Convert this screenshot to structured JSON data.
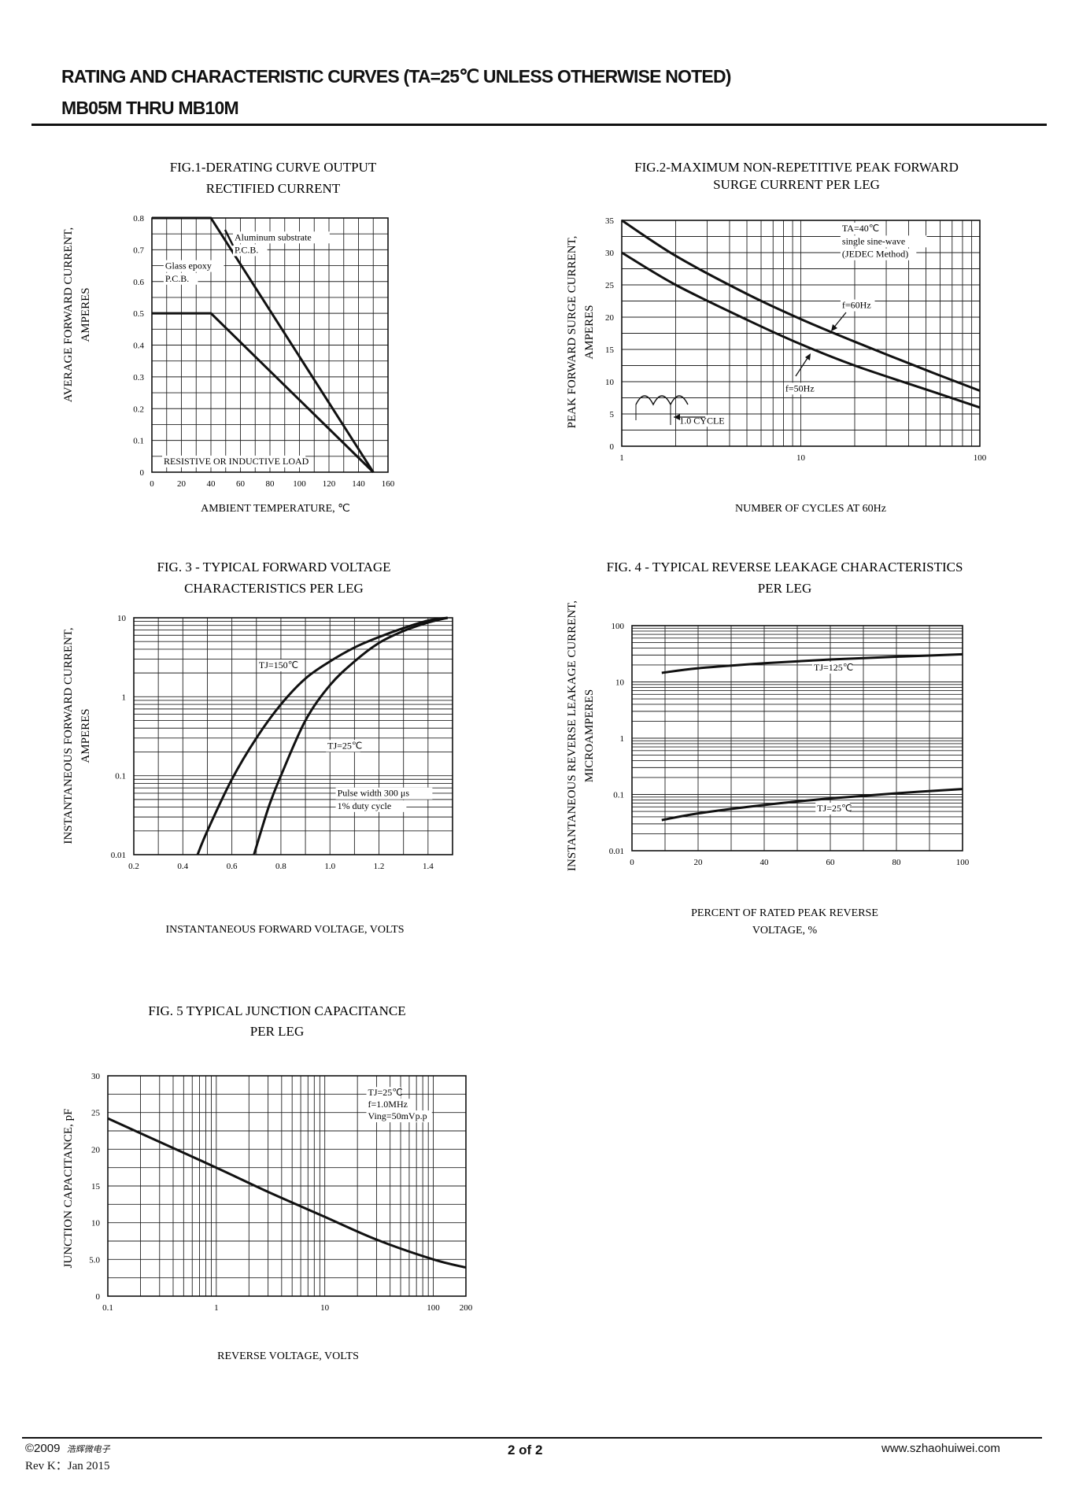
{
  "header": {
    "title": "RATING AND CHARACTERISTIC CURVES (TA=25℃ UNLESS OTHERWISE NOTED)",
    "subtitle": "MB05M THRU MB10M"
  },
  "footer": {
    "copyright": "©2009",
    "company": "浩辉微电子",
    "revision": "Rev K：Jan 2015",
    "page": "2 of  2",
    "website": "www.szhaohuiwei.com"
  },
  "chart_data": [
    {
      "id": "fig1",
      "type": "line",
      "title": [
        "FIG.1-DERATING CURVE OUTPUT",
        "RECTIFIED  CURRENT"
      ],
      "xlabel": "AMBIENT TEMPERATURE, ℃",
      "ylabel": [
        "AVERAGE FORWARD CURRENT,",
        "AMPERES"
      ],
      "xscale": "linear",
      "yscale": "linear",
      "xlim": [
        0,
        160
      ],
      "ylim": [
        0,
        0.8
      ],
      "xticks": [
        0,
        20,
        40,
        60,
        80,
        100,
        120,
        140,
        160
      ],
      "xticklabels": [
        "0",
        "20",
        "40",
        "60",
        "80",
        "100",
        "120",
        "140",
        "160"
      ],
      "yticks": [
        0,
        0.1,
        0.2,
        0.3,
        0.4,
        0.5,
        0.6,
        0.7,
        0.8
      ],
      "yticklabels": [
        "0",
        "0.1",
        "0.2",
        "0.3",
        "0.4",
        "0.5",
        "0.6",
        "0.7",
        "0.8"
      ],
      "series": [
        {
          "name": "Aluminum substrate P.C.B.",
          "points": [
            [
              0,
              0.8
            ],
            [
              40,
              0.8
            ],
            [
              150,
              0
            ]
          ]
        },
        {
          "name": "Glass epoxy P.C.B.",
          "points": [
            [
              0,
              0.5
            ],
            [
              40,
              0.5
            ],
            [
              150,
              0
            ]
          ]
        }
      ],
      "annotations": [
        {
          "text": "Aluminum substrate",
          "x": 56,
          "y": 0.73
        },
        {
          "text": "P.C.B.",
          "x": 56,
          "y": 0.69
        },
        {
          "text": "Glass epoxy",
          "x": 9,
          "y": 0.64
        },
        {
          "text": "P.C.B.",
          "x": 9,
          "y": 0.6
        },
        {
          "text": "RESISTIVE OR INDUCTIVE LOAD",
          "x": 8,
          "y": 0.025
        }
      ]
    },
    {
      "id": "fig2",
      "type": "line",
      "title": [
        "FIG.2-MAXIMUM NON-REPETITIVE PEAK FORWARD",
        "SURGE CURRENT PER LEG"
      ],
      "xlabel": "NUMBER OF CYCLES AT 60Hz",
      "ylabel": [
        "PEAK FORWARD SURGE CURRENT,",
        "AMPERES"
      ],
      "xscale": "log",
      "yscale": "linear",
      "xlim": [
        1,
        100
      ],
      "ylim": [
        0,
        35
      ],
      "xticks": [
        1,
        10,
        100
      ],
      "xticklabels": [
        "1",
        "10",
        "100"
      ],
      "yticks": [
        0,
        5,
        10,
        15,
        20,
        25,
        30,
        35
      ],
      "yticklabels": [
        "0",
        "5",
        "10",
        "15",
        "20",
        "25",
        "30",
        "35"
      ],
      "series": [
        {
          "name": "f=60Hz",
          "points": [
            [
              1,
              35
            ],
            [
              2,
              29.5
            ],
            [
              5,
              23.6
            ],
            [
              10,
              19.7
            ],
            [
              20,
              16.2
            ],
            [
              50,
              11.8
            ],
            [
              100,
              8.6
            ]
          ]
        },
        {
          "name": "f=50Hz",
          "points": [
            [
              1,
              30
            ],
            [
              2,
              25
            ],
            [
              5,
              19.6
            ],
            [
              10,
              15.8
            ],
            [
              20,
              12.5
            ],
            [
              50,
              8.8
            ],
            [
              100,
              6
            ]
          ]
        }
      ],
      "annotations": [
        {
          "text": "TA=40℃",
          "x": 17,
          "y": 33.3
        },
        {
          "text": "single sine-wave",
          "x": 17,
          "y": 31.3
        },
        {
          "text": "(JEDEC Method)",
          "x": 17,
          "y": 29.3
        },
        {
          "text": "f=60Hz",
          "x": 17,
          "y": 21.4
        },
        {
          "text": "f=50Hz",
          "x": 8.2,
          "y": 8.5
        },
        {
          "text": "1.0 CYCLE",
          "x": 2.1,
          "y": 3.5
        }
      ]
    },
    {
      "id": "fig3",
      "type": "line",
      "title": [
        "FIG. 3 - TYPICAL  FORWARD VOLTAGE",
        "CHARACTERISTICS PER LEG"
      ],
      "xlabel": "INSTANTANEOUS FORWARD VOLTAGE, VOLTS",
      "ylabel": [
        "INSTANTANEOUS FORWARD CURRENT,",
        "AMPERES"
      ],
      "xscale": "linear",
      "yscale": "log",
      "xlim": [
        0.2,
        1.5
      ],
      "ylim": [
        0.01,
        10
      ],
      "xticks": [
        0.2,
        0.4,
        0.6,
        0.8,
        1.0,
        1.2,
        1.4
      ],
      "xticklabels": [
        "0.2",
        "0.4",
        "0.6",
        "0.8",
        "1.0",
        "1.2",
        "1.4"
      ],
      "yticks": [
        0.01,
        0.1,
        1,
        10
      ],
      "yticklabels": [
        "0.01",
        "0.1",
        "1",
        "10"
      ],
      "series": [
        {
          "name": "TJ=150℃",
          "points": [
            [
              0.46,
              0.01
            ],
            [
              0.5,
              0.02
            ],
            [
              0.6,
              0.09
            ],
            [
              0.7,
              0.3
            ],
            [
              0.8,
              0.8
            ],
            [
              0.9,
              1.7
            ],
            [
              1.0,
              2.8
            ],
            [
              1.1,
              4.2
            ],
            [
              1.2,
              5.7
            ],
            [
              1.3,
              7.4
            ],
            [
              1.4,
              9.2
            ],
            [
              1.48,
              10
            ]
          ]
        },
        {
          "name": "TJ=25℃",
          "points": [
            [
              0.69,
              0.01
            ],
            [
              0.75,
              0.04
            ],
            [
              0.8,
              0.1
            ],
            [
              0.9,
              0.5
            ],
            [
              1.0,
              1.4
            ],
            [
              1.1,
              2.8
            ],
            [
              1.2,
              4.8
            ],
            [
              1.3,
              6.8
            ],
            [
              1.4,
              8.7
            ],
            [
              1.48,
              10
            ]
          ]
        }
      ],
      "annotations": [
        {
          "text": "TJ=150℃",
          "x": 0.71,
          "y": 2.3
        },
        {
          "text": "TJ=25℃",
          "x": 0.99,
          "y": 0.22
        },
        {
          "text": "Pulse width 300 μs",
          "x": 1.03,
          "y": 0.055
        },
        {
          "text": "1% duty cycle",
          "x": 1.03,
          "y": 0.038
        }
      ]
    },
    {
      "id": "fig4",
      "type": "line",
      "title": [
        "FIG. 4 - TYPICAL REVERSE LEAKAGE CHARACTERISTICS",
        "PER LEG"
      ],
      "xlabel": [
        "PERCENT OF RATED PEAK REVERSE",
        "VOLTAGE, %"
      ],
      "ylabel": [
        "INSTANTANEOUS REVERSE LEAKAGE CURRENT,",
        "MICROAMPERES"
      ],
      "xscale": "linear",
      "yscale": "log",
      "xlim": [
        0,
        100
      ],
      "ylim": [
        0.01,
        100
      ],
      "xticks": [
        0,
        20,
        40,
        60,
        80,
        100
      ],
      "xticklabels": [
        "0",
        "20",
        "40",
        "60",
        "80",
        "100"
      ],
      "yticks": [
        0.01,
        0.1,
        1,
        10,
        100
      ],
      "yticklabels": [
        "0.01",
        "0.1",
        "1",
        "10",
        "100"
      ],
      "series": [
        {
          "name": "TJ=125℃",
          "points": [
            [
              9,
              14.5
            ],
            [
              20,
              17.5
            ],
            [
              40,
              21.5
            ],
            [
              60,
              25
            ],
            [
              80,
              28
            ],
            [
              100,
              31
            ]
          ]
        },
        {
          "name": "TJ=25℃",
          "points": [
            [
              9,
              0.035
            ],
            [
              20,
              0.046
            ],
            [
              40,
              0.065
            ],
            [
              60,
              0.085
            ],
            [
              80,
              0.105
            ],
            [
              100,
              0.125
            ]
          ]
        }
      ],
      "annotations": [
        {
          "text": "TJ=125℃",
          "x": 55,
          "y": 16
        },
        {
          "text": "TJ=25℃",
          "x": 56,
          "y": 0.05
        }
      ]
    },
    {
      "id": "fig5",
      "type": "line",
      "title": [
        "FIG. 5  TYPICAL JUNCTION CAPACITANCE",
        "PER LEG"
      ],
      "xlabel": "REVERSE VOLTAGE, VOLTS",
      "ylabel": "JUNCTION CAPACITANCE, pF",
      "xscale": "log",
      "yscale": "linear",
      "xlim": [
        0.1,
        200
      ],
      "ylim": [
        0,
        30
      ],
      "xticks": [
        0.1,
        1,
        10,
        100,
        200
      ],
      "xticklabels": [
        "0.1",
        "1",
        "10",
        "100",
        "200"
      ],
      "yticks": [
        0,
        5,
        10,
        15,
        20,
        25,
        30
      ],
      "yticklabels": [
        "0",
        "5.0",
        "10",
        "15",
        "20",
        "25",
        "30"
      ],
      "series": [
        {
          "name": "TJ=25℃",
          "points": [
            [
              0.1,
              24.2
            ],
            [
              0.3,
              21
            ],
            [
              1,
              17.5
            ],
            [
              3,
              14.2
            ],
            [
              10,
              10.8
            ],
            [
              30,
              7.7
            ],
            [
              100,
              5
            ],
            [
              200,
              3.9
            ]
          ]
        }
      ],
      "annotations": [
        {
          "text": "TJ=25℃",
          "x": 25,
          "y": 27.3
        },
        {
          "text": "f=1.0MHz",
          "x": 25,
          "y": 25.7
        },
        {
          "text": "Ving=50mVp.p",
          "x": 25,
          "y": 24.1
        }
      ]
    }
  ]
}
